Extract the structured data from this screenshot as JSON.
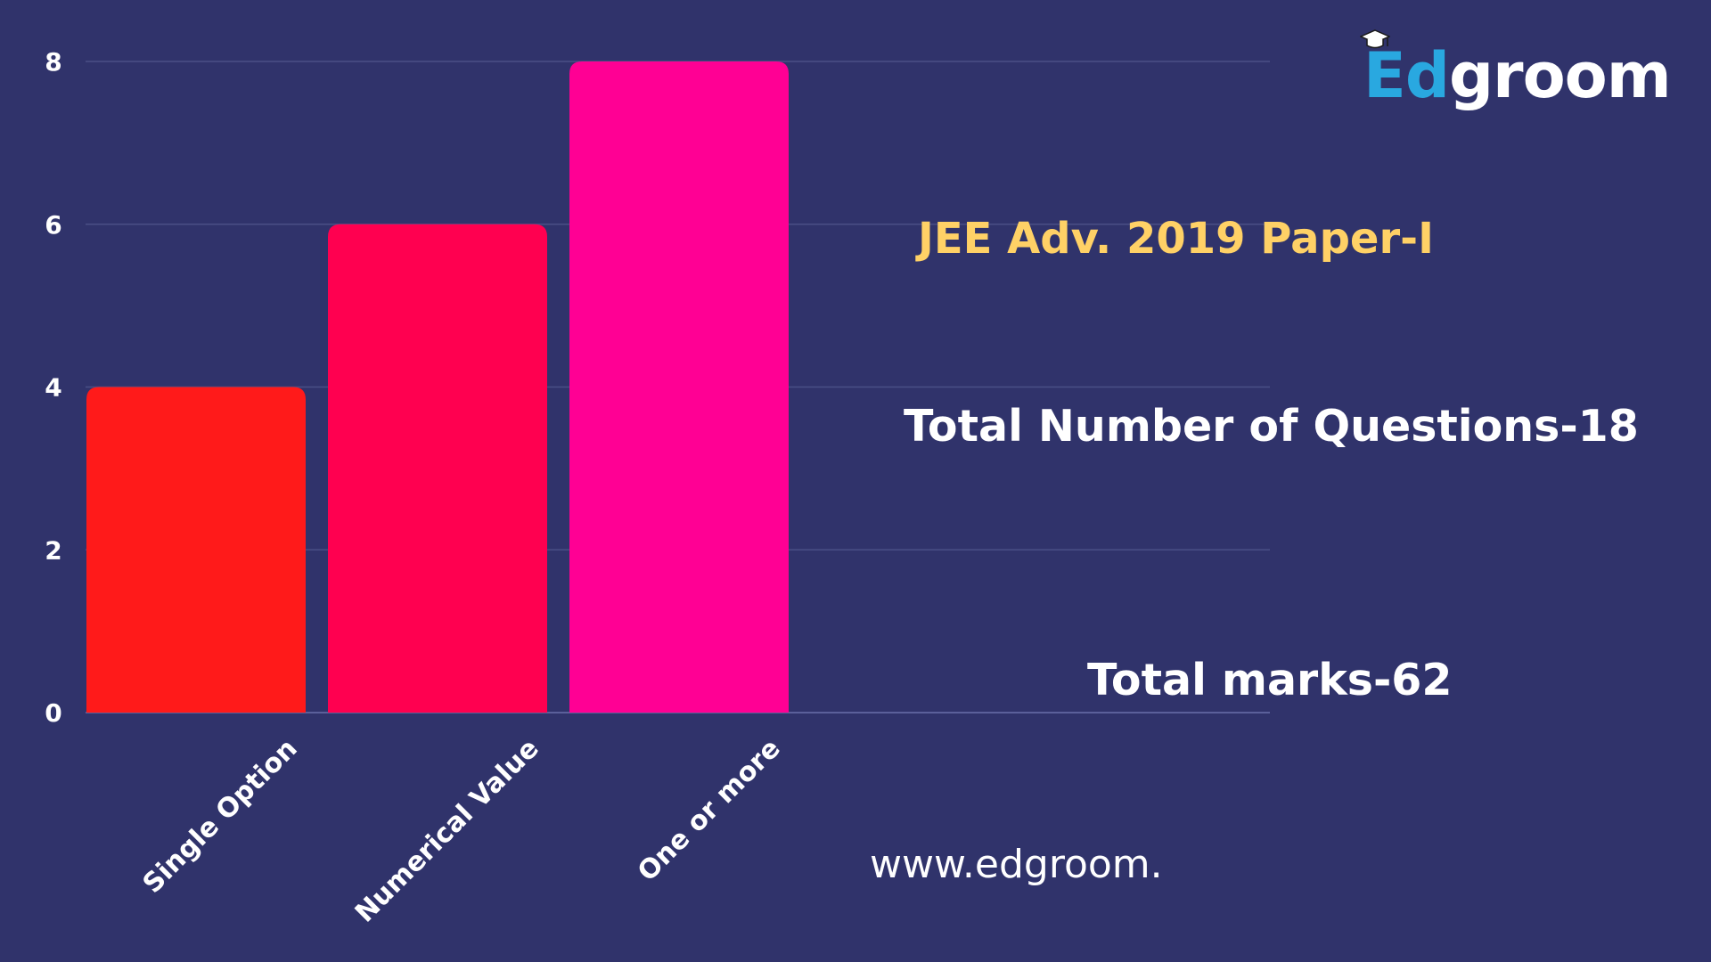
{
  "chart_data": {
    "type": "bar",
    "categories": [
      "Single Option",
      "Numerical Value",
      "One or more"
    ],
    "values": [
      4,
      6,
      8
    ],
    "ylim": [
      0,
      8
    ],
    "yticks": [
      0,
      2,
      4,
      6,
      8
    ],
    "grid": true,
    "bar_colors": [
      "#ff1a1a",
      "#ff0050",
      "#ff0094"
    ]
  },
  "annotations": {
    "title": "JEE Adv. 2019 Paper-I",
    "questions": "Total Number of Questions-18",
    "marks": "Total marks-62",
    "website": "www.edgroom."
  },
  "logo": {
    "part1": "Ed",
    "part2": "groom",
    "icon": "graduation-cap-icon"
  },
  "colors": {
    "background": "#30336b",
    "title": "#ffd166",
    "text": "#ffffff",
    "logo_accent": "#29a8e0"
  }
}
